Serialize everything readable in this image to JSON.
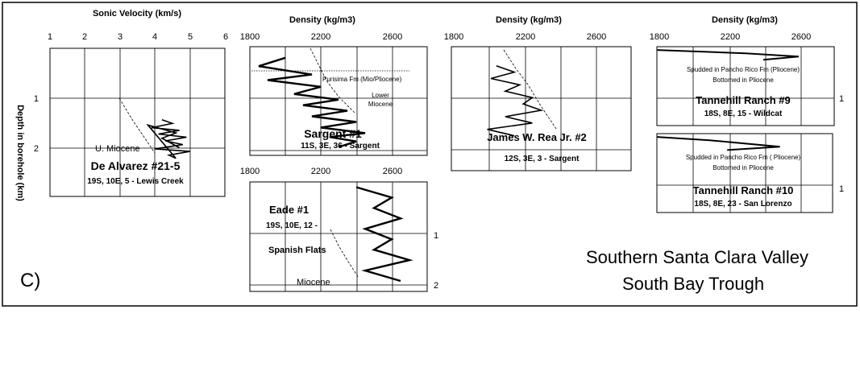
{
  "panel_label": "C)",
  "region": {
    "line1": "Southern Santa Clara Valley",
    "line2": "South Bay Trough"
  },
  "y_axis_label": "Depth in borehole (km)",
  "chart_data": [
    {
      "type": "line",
      "title": "Sonic Velocity (km/s)",
      "xlabel": "Sonic Velocity (km/s)",
      "ylabel": "Depth in borehole (km)",
      "xlim": [
        1,
        6
      ],
      "ylim": [
        0,
        2.8
      ],
      "x_ticks": [
        "1",
        "2",
        "3",
        "4",
        "5",
        "6"
      ],
      "y_ticks": [
        "1",
        "2"
      ],
      "well_name": "De Alvarez #21-5",
      "location": "19S, 10E, 5 - Lewis Creek",
      "annotations": [
        "U. Miocene"
      ],
      "grid": true,
      "series": [
        {
          "values": [
            [
              4.2,
              1.35
            ],
            [
              4.5,
              1.42
            ],
            [
              3.9,
              1.5
            ],
            [
              4.7,
              1.55
            ],
            [
              4.1,
              1.62
            ],
            [
              4.9,
              1.68
            ],
            [
              4.3,
              1.75
            ],
            [
              4.8,
              1.82
            ],
            [
              4.0,
              1.9
            ],
            [
              5.0,
              1.95
            ],
            [
              4.4,
              2.02
            ],
            [
              4.6,
              2.08
            ],
            [
              3.8,
              1.45
            ],
            [
              4.6,
              1.6
            ],
            [
              4.2,
              1.7
            ],
            [
              4.7,
              1.88
            ]
          ]
        }
      ]
    },
    {
      "type": "line",
      "title": "Density (kg/m3)",
      "xlabel": "Density (kg/m3)",
      "xlim": [
        1800,
        2800
      ],
      "ylim": [
        0,
        1.95
      ],
      "x_ticks": [
        "1800",
        "2200",
        "2600"
      ],
      "well_name": "Sargent #1",
      "location": "11S, 3E, 36 - Sargent",
      "annotations": [
        "Purisima Fm (Mio/Pliocene)",
        "Lower",
        "Miocene"
      ],
      "grid": true,
      "series": [
        {
          "values": [
            [
              2000,
              0.2
            ],
            [
              1850,
              0.35
            ],
            [
              2150,
              0.5
            ],
            [
              1900,
              0.6
            ],
            [
              2200,
              0.72
            ],
            [
              2050,
              0.85
            ],
            [
              2300,
              0.95
            ],
            [
              2100,
              1.05
            ],
            [
              2350,
              1.15
            ],
            [
              2150,
              1.25
            ],
            [
              2400,
              1.35
            ],
            [
              2200,
              1.45
            ],
            [
              2450,
              1.55
            ],
            [
              2250,
              1.62
            ],
            [
              2400,
              1.7
            ],
            [
              2300,
              1.8
            ]
          ]
        }
      ]
    },
    {
      "type": "line",
      "title": "Density (kg/m3)",
      "xlabel": "Density (kg/m3)",
      "xlim": [
        1800,
        2800
      ],
      "ylim": [
        0,
        1.95
      ],
      "x_ticks": [
        "1800",
        "2200",
        "2600"
      ],
      "well_name": "James W. Rea Jr. #2",
      "location": "12S, 3E, 3 - Sargent",
      "grid": true,
      "series": [
        {
          "values": [
            [
              2050,
              0.3
            ],
            [
              2150,
              0.4
            ],
            [
              2020,
              0.5
            ],
            [
              2180,
              0.6
            ],
            [
              2100,
              0.7
            ],
            [
              2250,
              0.8
            ],
            [
              2200,
              0.9
            ],
            [
              2300,
              1.0
            ],
            [
              2100,
              1.1
            ],
            [
              2250,
              1.2
            ],
            [
              2000,
              1.3
            ],
            [
              2150,
              1.4
            ]
          ]
        }
      ]
    },
    {
      "type": "line",
      "title": "Density (kg/m3)",
      "xlabel": "Density (kg/m3)",
      "xlim": [
        1800,
        2800
      ],
      "ylim": [
        0,
        1.2
      ],
      "x_ticks": [
        "1800",
        "2200",
        "2600"
      ],
      "y_ticks": [
        "1"
      ],
      "well_name": "Tannehill Ranch #9",
      "location": "18S, 8E, 15 - Wildcat",
      "annotations": [
        "Spudded in Pancho Rico Fm (Pliocene)",
        "Bottomed in Pliocene"
      ],
      "grid": true,
      "series": [
        {
          "values": [
            [
              1800,
              0.05
            ],
            [
              2300,
              0.1
            ],
            [
              2600,
              0.15
            ],
            [
              2400,
              0.2
            ]
          ]
        }
      ]
    },
    {
      "type": "line",
      "title": "",
      "xlim": [
        1800,
        2800
      ],
      "ylim": [
        0,
        1.2
      ],
      "y_ticks": [
        "1"
      ],
      "well_name": "Tannehill Ranch #10",
      "location": "18S, 8E, 23 - San Lorenzo",
      "annotations": [
        "Spudded in Pancho Rico Fm ( Pliocene)",
        "Bottomed in Pliocene"
      ],
      "grid": true,
      "series": [
        {
          "values": [
            [
              1800,
              0.05
            ],
            [
              2100,
              0.1
            ],
            [
              2300,
              0.15
            ],
            [
              2500,
              0.2
            ],
            [
              2200,
              0.25
            ]
          ]
        }
      ]
    },
    {
      "type": "line",
      "title": "",
      "xlim": [
        1800,
        2800
      ],
      "ylim": [
        0,
        2.1
      ],
      "x_ticks": [
        "1800",
        "2200",
        "2600"
      ],
      "y_ticks": [
        "1",
        "2"
      ],
      "well_name": "Eade #1",
      "location": "19S, 10E, 12 -",
      "annotations": [
        "Spanish Flats",
        "Miocene"
      ],
      "grid": true,
      "series": [
        {
          "values": [
            [
              2400,
              0.1
            ],
            [
              2600,
              0.3
            ],
            [
              2500,
              0.5
            ],
            [
              2650,
              0.7
            ],
            [
              2450,
              0.9
            ],
            [
              2600,
              1.1
            ],
            [
              2500,
              1.3
            ],
            [
              2700,
              1.5
            ],
            [
              2450,
              1.7
            ],
            [
              2650,
              1.9
            ]
          ]
        }
      ]
    }
  ]
}
